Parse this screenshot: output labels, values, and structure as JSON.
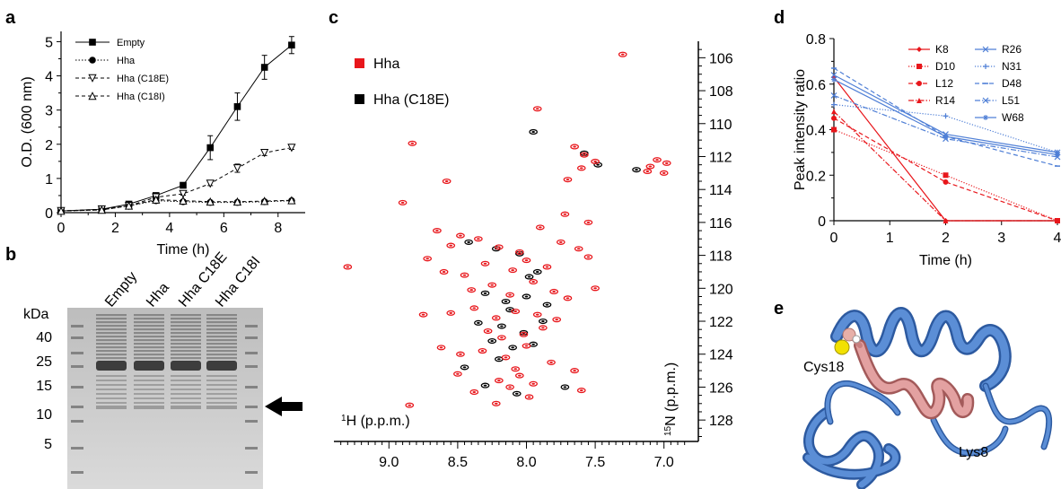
{
  "panel_labels": [
    "a",
    "b",
    "c",
    "d",
    "e"
  ],
  "colors": {
    "red": "#e8161b",
    "blue": "#4f7fd6",
    "black": "#000000",
    "ribbon_blue": "#4a7cc4",
    "ribbon_pink": "#d99090",
    "sulfur": "#f2e100",
    "gel_bg": "#cfcfcf",
    "band": "#585858"
  },
  "chart_data": [
    {
      "panel": "a",
      "type": "line",
      "xlabel": "Time (h)",
      "ylabel": "O.D. (600 nm)",
      "xlim": [
        0,
        9
      ],
      "ylim": [
        0,
        5.3
      ],
      "xticks": [
        0,
        2,
        4,
        6,
        8
      ],
      "yticks": [
        0,
        1,
        2,
        3,
        4,
        5
      ],
      "legend_position": "top-left",
      "series": [
        {
          "name": "Empty",
          "marker": "square-filled",
          "line": "solid",
          "x": [
            0,
            1.5,
            2.5,
            3.5,
            4.5,
            5.5,
            6.5,
            7.5,
            8.5
          ],
          "y": [
            0.05,
            0.1,
            0.25,
            0.5,
            0.8,
            1.9,
            3.1,
            4.25,
            4.9
          ],
          "err": [
            0.03,
            0.03,
            0.05,
            0.06,
            0.05,
            0.35,
            0.4,
            0.35,
            0.25
          ]
        },
        {
          "name": "Hha",
          "marker": "circle-filled",
          "line": "dotted",
          "x": [
            0,
            1.5,
            2.5,
            3.5,
            4.5,
            5.5,
            6.5,
            7.5,
            8.5
          ],
          "y": [
            0.05,
            0.08,
            0.2,
            0.35,
            0.32,
            0.3,
            0.3,
            0.32,
            0.35
          ],
          "err": [
            0.02,
            0.02,
            0.03,
            0.03,
            0.03,
            0.03,
            0.03,
            0.03,
            0.03
          ]
        },
        {
          "name": "Hha (C18E)",
          "marker": "triangle-down-open",
          "line": "dashed",
          "x": [
            0,
            1.5,
            2.5,
            3.5,
            4.5,
            5.5,
            6.5,
            7.5,
            8.5
          ],
          "y": [
            0.05,
            0.1,
            0.2,
            0.45,
            0.55,
            0.85,
            1.3,
            1.75,
            1.9
          ],
          "err": [
            0.02,
            0.02,
            0.03,
            0.04,
            0.04,
            0.06,
            0.12,
            0.08,
            0.05
          ]
        },
        {
          "name": "Hha (C18I)",
          "marker": "triangle-up-open",
          "line": "dashed",
          "x": [
            0,
            1.5,
            2.5,
            3.5,
            4.5,
            5.5,
            6.5,
            7.5,
            8.5
          ],
          "y": [
            0.05,
            0.08,
            0.2,
            0.38,
            0.35,
            0.32,
            0.32,
            0.34,
            0.36
          ],
          "err": [
            0.02,
            0.02,
            0.03,
            0.03,
            0.03,
            0.03,
            0.03,
            0.03,
            0.03
          ]
        }
      ]
    },
    {
      "panel": "c",
      "type": "scatter",
      "xlabel_sup": "1",
      "xlabel": "H (p.p.m.)",
      "ylabel_sup": "15",
      "ylabel": "N (p.p.m.)",
      "xlim": [
        9.4,
        6.75
      ],
      "ylim": [
        105,
        129.3
      ],
      "xticks": [
        9.0,
        8.5,
        8.0,
        7.5,
        7.0
      ],
      "xtick_labels": [
        "9.0",
        "8.5",
        "8.0",
        "7.5",
        "7.0"
      ],
      "yticks": [
        106,
        108,
        110,
        112,
        114,
        116,
        118,
        120,
        122,
        124,
        126,
        128
      ],
      "legend_position": "top-left",
      "series": [
        {
          "name": "Hha",
          "color": "#e8161b",
          "x": [
            7.3,
            7.92,
            8.83,
            7.65,
            7.58,
            7.5,
            7.6,
            7.7,
            7.05,
            7.1,
            7.0,
            6.98,
            7.12,
            8.65,
            8.55,
            8.48,
            8.35,
            8.2,
            8.05,
            7.9,
            7.75,
            7.62,
            7.55,
            7.85,
            8.0,
            8.1,
            8.3,
            8.45,
            8.6,
            8.72,
            8.4,
            8.25,
            8.12,
            7.95,
            7.8,
            7.7,
            7.5,
            8.55,
            8.38,
            8.22,
            8.08,
            7.92,
            7.78,
            8.28,
            8.18,
            8.02,
            7.88,
            8.62,
            8.48,
            8.32,
            8.15,
            8.0,
            7.82,
            9.3,
            8.75,
            8.5,
            8.2,
            8.05,
            7.95,
            7.65,
            8.38,
            8.12,
            7.98,
            7.6,
            8.85,
            8.22,
            8.08,
            8.9,
            7.72,
            7.55,
            8.58
          ],
          "y": [
            105.8,
            109.1,
            111.2,
            111.4,
            111.9,
            112.3,
            112.7,
            113.4,
            112.2,
            112.6,
            113.0,
            112.4,
            112.9,
            116.5,
            117.4,
            116.8,
            117.0,
            117.5,
            117.8,
            116.3,
            117.2,
            117.6,
            118.1,
            118.7,
            118.3,
            118.9,
            118.5,
            119.2,
            119.0,
            118.2,
            120.1,
            119.8,
            120.4,
            119.6,
            120.2,
            120.6,
            120.0,
            121.5,
            121.2,
            121.8,
            121.4,
            121.6,
            121.9,
            122.6,
            123.0,
            122.8,
            122.4,
            123.6,
            124.0,
            123.8,
            124.2,
            123.5,
            124.5,
            118.7,
            121.6,
            125.2,
            125.6,
            125.3,
            125.8,
            125.0,
            126.3,
            126.0,
            126.6,
            126.2,
            127.1,
            127.0,
            124.9,
            114.8,
            115.5,
            116.0,
            113.5
          ]
        },
        {
          "name": "Hha (C18E)",
          "color": "#000000",
          "x": [
            7.95,
            7.58,
            7.48,
            7.2,
            8.42,
            8.22,
            8.05,
            7.92,
            8.3,
            8.15,
            8.0,
            7.85,
            8.35,
            8.18,
            8.02,
            7.88,
            8.25,
            8.1,
            7.95,
            8.2,
            8.45,
            8.3,
            8.07,
            7.72,
            7.98,
            8.12
          ],
          "y": [
            110.5,
            111.8,
            112.5,
            112.8,
            117.2,
            117.6,
            117.9,
            119.0,
            120.3,
            120.8,
            120.5,
            121.0,
            122.1,
            122.3,
            122.7,
            122.0,
            123.2,
            123.6,
            123.4,
            124.3,
            124.8,
            125.9,
            126.4,
            126.0,
            119.3,
            121.3
          ]
        }
      ]
    },
    {
      "panel": "d",
      "type": "line",
      "xlabel": "Time (h)",
      "ylabel": "Peak intensity ratio",
      "xlim": [
        0,
        4
      ],
      "ylim": [
        0,
        0.8
      ],
      "xticks": [
        0,
        1,
        2,
        3,
        4
      ],
      "yticks": [
        0,
        0.2,
        0.4,
        0.6,
        0.8
      ],
      "ytick_labels": [
        "0",
        "0.2",
        "0.4",
        "0.6",
        "0.8"
      ],
      "legend_position": "top-right",
      "x": [
        0,
        2,
        4
      ],
      "series": [
        {
          "name": "K8",
          "color": "#e8161b",
          "dash": "solid",
          "marker": "diamond",
          "y": [
            0.63,
            0.0,
            0.0
          ]
        },
        {
          "name": "D10",
          "color": "#e8161b",
          "dash": "dotted",
          "marker": "square",
          "y": [
            0.4,
            0.2,
            0.0
          ]
        },
        {
          "name": "L12",
          "color": "#e8161b",
          "dash": "dashed",
          "marker": "circle",
          "y": [
            0.45,
            0.17,
            0.0
          ]
        },
        {
          "name": "R14",
          "color": "#e8161b",
          "dash": "dashdot",
          "marker": "triangle",
          "y": [
            0.48,
            0.0,
            0.0
          ]
        },
        {
          "name": "R26",
          "color": "#4f7fd6",
          "dash": "solid",
          "marker": "x",
          "y": [
            0.64,
            0.38,
            0.3
          ]
        },
        {
          "name": "N31",
          "color": "#4f7fd6",
          "dash": "dotted",
          "marker": "plus",
          "y": [
            0.51,
            0.46,
            0.3
          ]
        },
        {
          "name": "D48",
          "color": "#4f7fd6",
          "dash": "dashed",
          "marker": "dash",
          "y": [
            0.67,
            0.37,
            0.24
          ]
        },
        {
          "name": "L51",
          "color": "#4f7fd6",
          "dash": "dashdot",
          "marker": "x",
          "y": [
            0.55,
            0.36,
            0.28
          ]
        },
        {
          "name": "W68",
          "color": "#4f7fd6",
          "dash": "solid",
          "marker": "asterisk",
          "y": [
            0.62,
            0.37,
            0.29
          ]
        }
      ]
    }
  ],
  "gel": {
    "unit_label": "kDa",
    "markers": [
      "40",
      "25",
      "15",
      "10",
      "5"
    ],
    "lanes": [
      "Empty",
      "Hha",
      "Hha C18E",
      "Hha C18I"
    ]
  },
  "structure": {
    "labels": [
      "Cys18",
      "Lys8"
    ]
  }
}
